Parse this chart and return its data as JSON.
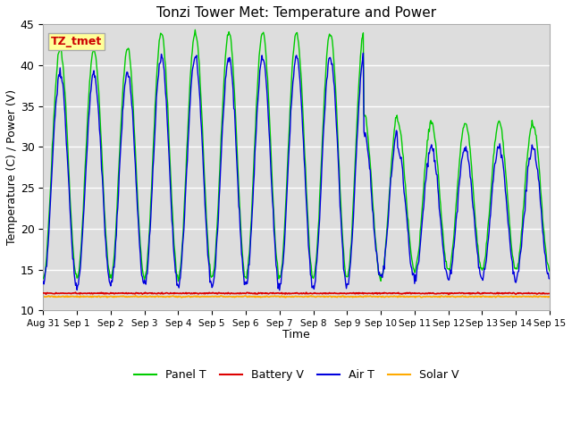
{
  "title": "Tonzi Tower Met: Temperature and Power",
  "xlabel": "Time",
  "ylabel": "Temperature (C) / Power (V)",
  "ylim": [
    10,
    45
  ],
  "yticks": [
    10,
    15,
    20,
    25,
    30,
    35,
    40,
    45
  ],
  "annotation_text": "TZ_tmet",
  "annotation_box_color": "#ffff99",
  "annotation_text_color": "#cc0000",
  "annotation_border_color": "#aaaaaa",
  "panel_t_color": "#00cc00",
  "battery_v_color": "#dd0000",
  "air_t_color": "#0000dd",
  "solar_v_color": "#ffaa00",
  "fig_bg_color": "#ffffff",
  "plot_bg_color": "#dddddd",
  "grid_color": "#ffffff",
  "legend_labels": [
    "Panel T",
    "Battery V",
    "Air T",
    "Solar V"
  ],
  "battery_v_value": 12.1,
  "solar_v_value": 11.7
}
